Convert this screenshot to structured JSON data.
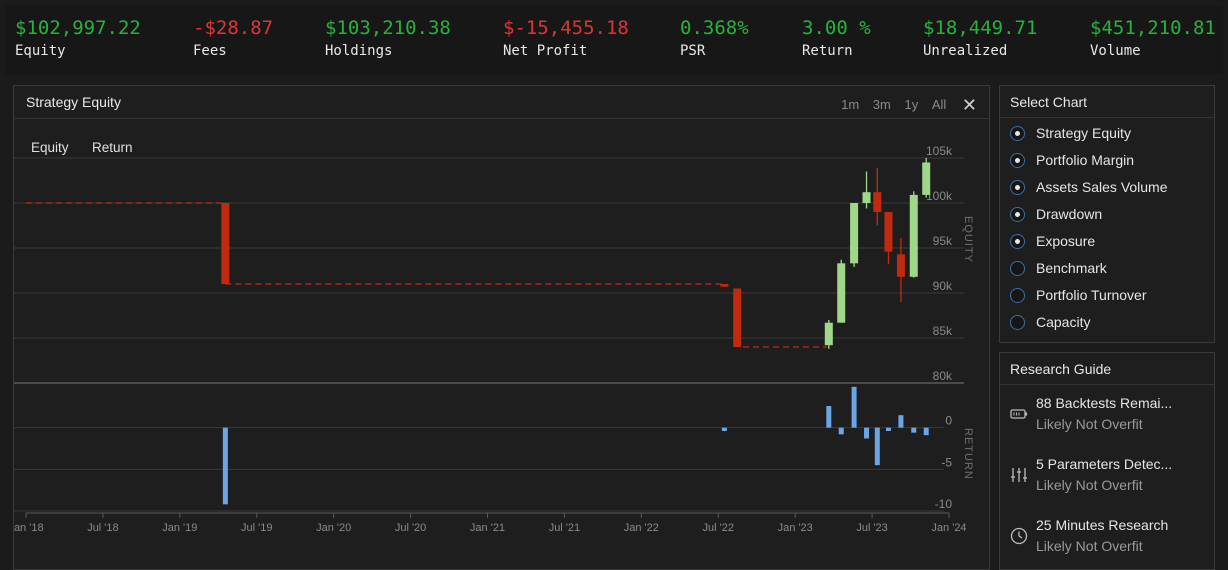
{
  "stats": [
    {
      "value": "$102,997.22",
      "label": "Equity",
      "color": "#27b33a"
    },
    {
      "value": "-$28.87",
      "label": "Fees",
      "color": "#e03434"
    },
    {
      "value": "$103,210.38",
      "label": "Holdings",
      "color": "#27b33a"
    },
    {
      "value": "$-15,455.18",
      "label": "Net Profit",
      "color": "#e03434"
    },
    {
      "value": "0.368%",
      "label": "PSR",
      "color": "#27b33a"
    },
    {
      "value": "3.00 %",
      "label": "Return",
      "color": "#27b33a"
    },
    {
      "value": "$18,449.71",
      "label": "Unrealized",
      "color": "#27b33a"
    },
    {
      "value": "$451,210.81",
      "label": "Volume",
      "color": "#27b33a"
    }
  ],
  "chart_panel": {
    "title": "Strategy Equity",
    "ranges": [
      "1m",
      "3m",
      "1y",
      "All"
    ],
    "close_icon": "close-icon",
    "tabs": [
      "Equity",
      "Return"
    ]
  },
  "select_chart": {
    "title": "Select Chart",
    "options": [
      {
        "label": "Strategy Equity",
        "selected": true
      },
      {
        "label": "Portfolio Margin",
        "selected": true
      },
      {
        "label": "Assets Sales Volume",
        "selected": true
      },
      {
        "label": "Drawdown",
        "selected": true
      },
      {
        "label": "Exposure",
        "selected": true
      },
      {
        "label": "Benchmark",
        "selected": false
      },
      {
        "label": "Portfolio Turnover",
        "selected": false
      },
      {
        "label": "Capacity",
        "selected": false
      }
    ]
  },
  "research_guide": {
    "title": "Research Guide",
    "items": [
      {
        "icon": "battery-icon",
        "title": "88 Backtests Remai...",
        "subtitle": "Likely Not Overfit"
      },
      {
        "icon": "sliders-icon",
        "title": "5 Parameters Detec...",
        "subtitle": "Likely Not Overfit"
      },
      {
        "icon": "clock-icon",
        "title": "25 Minutes Research",
        "subtitle": "Likely Not Overfit"
      }
    ]
  },
  "chart_data": [
    {
      "type": "candlestick",
      "ylabel": "EQUITY",
      "y_ticks": [
        "105k",
        "100k",
        "95k",
        "90k",
        "85k",
        "80k"
      ],
      "ylim": [
        80000,
        105000
      ],
      "x_ticks": [
        "Jan '18",
        "Jul '18",
        "Jan '19",
        "Jul '19",
        "Jan '20",
        "Jul '20",
        "Jan '21",
        "Jul '21",
        "Jan '22",
        "Jul '22",
        "Jan '23",
        "Jul '23",
        "Jan '24"
      ],
      "xlim": [
        "2017-12-20",
        "2024-01-25"
      ],
      "flat_segments": [
        {
          "from": "2017-12-20",
          "to": "2019-04-15",
          "value": 100000
        },
        {
          "from": "2019-04-15",
          "to": "2022-07-28",
          "value": 91000
        },
        {
          "from": "2022-09-15",
          "to": "2023-04-05",
          "value": 84000
        }
      ],
      "candles": [
        {
          "date": "2019-04-15",
          "open": 100000,
          "high": 100000,
          "low": 91000,
          "close": 91000
        },
        {
          "date": "2022-08-01",
          "open": 91000,
          "high": 91000,
          "low": 90700,
          "close": 90700
        },
        {
          "date": "2022-09-01",
          "open": 90500,
          "high": 90500,
          "low": 84000,
          "close": 84000
        },
        {
          "date": "2023-04-10",
          "open": 84200,
          "high": 87000,
          "low": 83800,
          "close": 86700
        },
        {
          "date": "2023-05-10",
          "open": 86700,
          "high": 93700,
          "low": 86700,
          "close": 93300
        },
        {
          "date": "2023-06-10",
          "open": 93300,
          "high": 100000,
          "low": 92900,
          "close": 100000
        },
        {
          "date": "2023-07-10",
          "open": 100000,
          "high": 103500,
          "low": 99400,
          "close": 101200
        },
        {
          "date": "2023-08-05",
          "open": 101200,
          "high": 103900,
          "low": 97500,
          "close": 99000
        },
        {
          "date": "2023-09-01",
          "open": 99000,
          "high": 99000,
          "low": 93200,
          "close": 94600
        },
        {
          "date": "2023-10-01",
          "open": 94300,
          "high": 96100,
          "low": 89000,
          "close": 91800
        },
        {
          "date": "2023-11-01",
          "open": 91800,
          "high": 101300,
          "low": 91700,
          "close": 100900
        },
        {
          "date": "2023-12-01",
          "open": 100900,
          "high": 105000,
          "low": 100600,
          "close": 104500
        }
      ]
    },
    {
      "type": "bar",
      "ylabel": "RETURN",
      "y_ticks": [
        "0",
        "-5",
        "-10"
      ],
      "ylim": [
        -10,
        5
      ],
      "bars": [
        {
          "date": "2019-04-15",
          "value": -9.2
        },
        {
          "date": "2022-08-01",
          "value": -0.4
        },
        {
          "date": "2023-04-10",
          "value": 2.6
        },
        {
          "date": "2023-05-10",
          "value": -0.8
        },
        {
          "date": "2023-06-10",
          "value": 4.9
        },
        {
          "date": "2023-07-10",
          "value": -1.3
        },
        {
          "date": "2023-08-05",
          "value": -4.5
        },
        {
          "date": "2023-09-01",
          "value": -0.4
        },
        {
          "date": "2023-10-01",
          "value": 1.5
        },
        {
          "date": "2023-11-01",
          "value": -0.6
        },
        {
          "date": "2023-12-01",
          "value": -0.9
        }
      ]
    }
  ],
  "colors": {
    "up": "#9fd88a",
    "down": "#c22a10",
    "return_bar": "#6aa6e6",
    "radio_border": "#3d6fa8"
  }
}
